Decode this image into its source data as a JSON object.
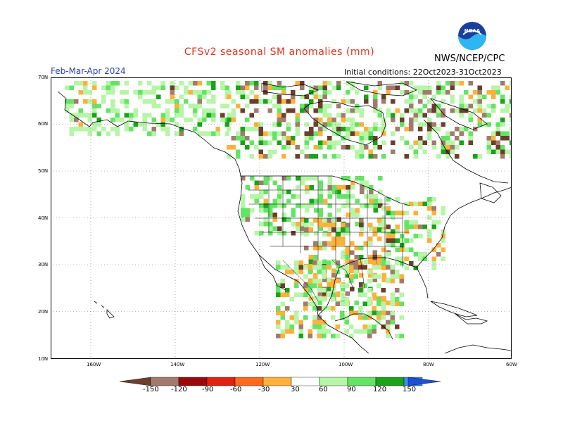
{
  "header": {
    "title": "CFSv2 seasonal SM anomalies (mm)",
    "season": "Feb-Mar-Apr 2024",
    "initial_conditions": "Initial conditions: 22Oct2023-31Oct2023",
    "organization": "NWS/NCEP/CPC",
    "logo_text": "NOAA"
  },
  "axes": {
    "lat_labels": [
      "70N",
      "60N",
      "50N",
      "40N",
      "30N",
      "20N",
      "10N"
    ],
    "lon_labels": [
      "160W",
      "140W",
      "120W",
      "100W",
      "80W",
      "60W"
    ]
  },
  "legend": {
    "labels": [
      "-150",
      "-120",
      "-90",
      "-60",
      "-30",
      "30",
      "60",
      "90",
      "120",
      "150"
    ],
    "colors": {
      "lt_-150": "#6b3e2e",
      "-150_-120": "#a27b6c",
      "-120_-90": "#9b0a0a",
      "-90_-60": "#e0220f",
      "-60_-30": "#ff6b1a",
      "-30_0": "#ffb13b",
      "neutral": "#ffffff",
      "30_60": "#b7f5a8",
      "60_90": "#64e464",
      "90_120": "#19a319",
      "120_150": "#3b8ef0",
      "gt_150": "#1f4fd6"
    }
  }
}
